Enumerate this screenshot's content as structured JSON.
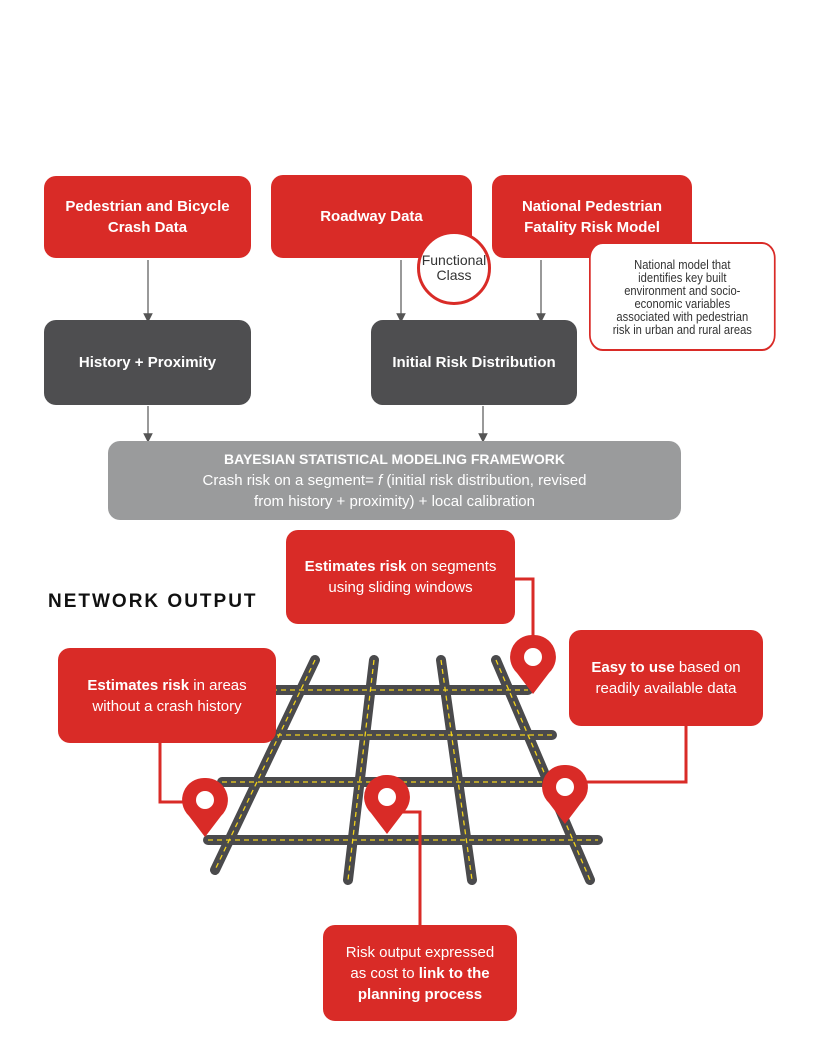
{
  "inputs": {
    "crash_data": "Pedestrian and Bicycle Crash Data",
    "roadway_data": "Roadway Data",
    "national_model": "National Pedestrian Fatality Risk Model"
  },
  "functional_class": {
    "line1": "Functional",
    "line2": "Class"
  },
  "national_model_note": {
    "line1": "National model that",
    "line2": "identifies key built",
    "line3": "environment and socio-",
    "line4": "economic variables",
    "line5": "associated with pedestrian",
    "line6": "risk in urban and rural areas"
  },
  "process": {
    "history": "History + Proximity",
    "initial_risk": "Initial Risk Distribution"
  },
  "framework": {
    "title": "BAYESIAN STATISTICAL MODELING FRAMEWORK",
    "line1_pre": "Crash risk on a segment= ",
    "line1_f": "f",
    "line1_post": " (initial risk distribution, revised",
    "line2": "from history + proximity) + local calibration"
  },
  "network_output": {
    "heading": "NETWORK OUTPUT",
    "sliding": {
      "bold": "Estimates risk",
      "rest1": " on segments",
      "line2": "using sliding windows"
    },
    "areas": {
      "bold": "Estimates risk",
      "rest1": " in areas",
      "line2": "without a crash history"
    },
    "easy": {
      "bold": "Easy to use",
      "rest1": " based on",
      "line2": "readily available data"
    },
    "cost": {
      "line1": "Risk output expressed",
      "line2_pre": "as cost to ",
      "line2_bold": "link to the",
      "line3_bold": "planning process"
    }
  },
  "colors": {
    "accent_red": "#d92b27",
    "dark_box": "#4e4e50",
    "framework_gray": "#9a9b9c",
    "road": "#4a4a4c",
    "lane_marking": "#f2d21b"
  },
  "icons": [
    "map-pin-icon",
    "road-grid-icon"
  ]
}
